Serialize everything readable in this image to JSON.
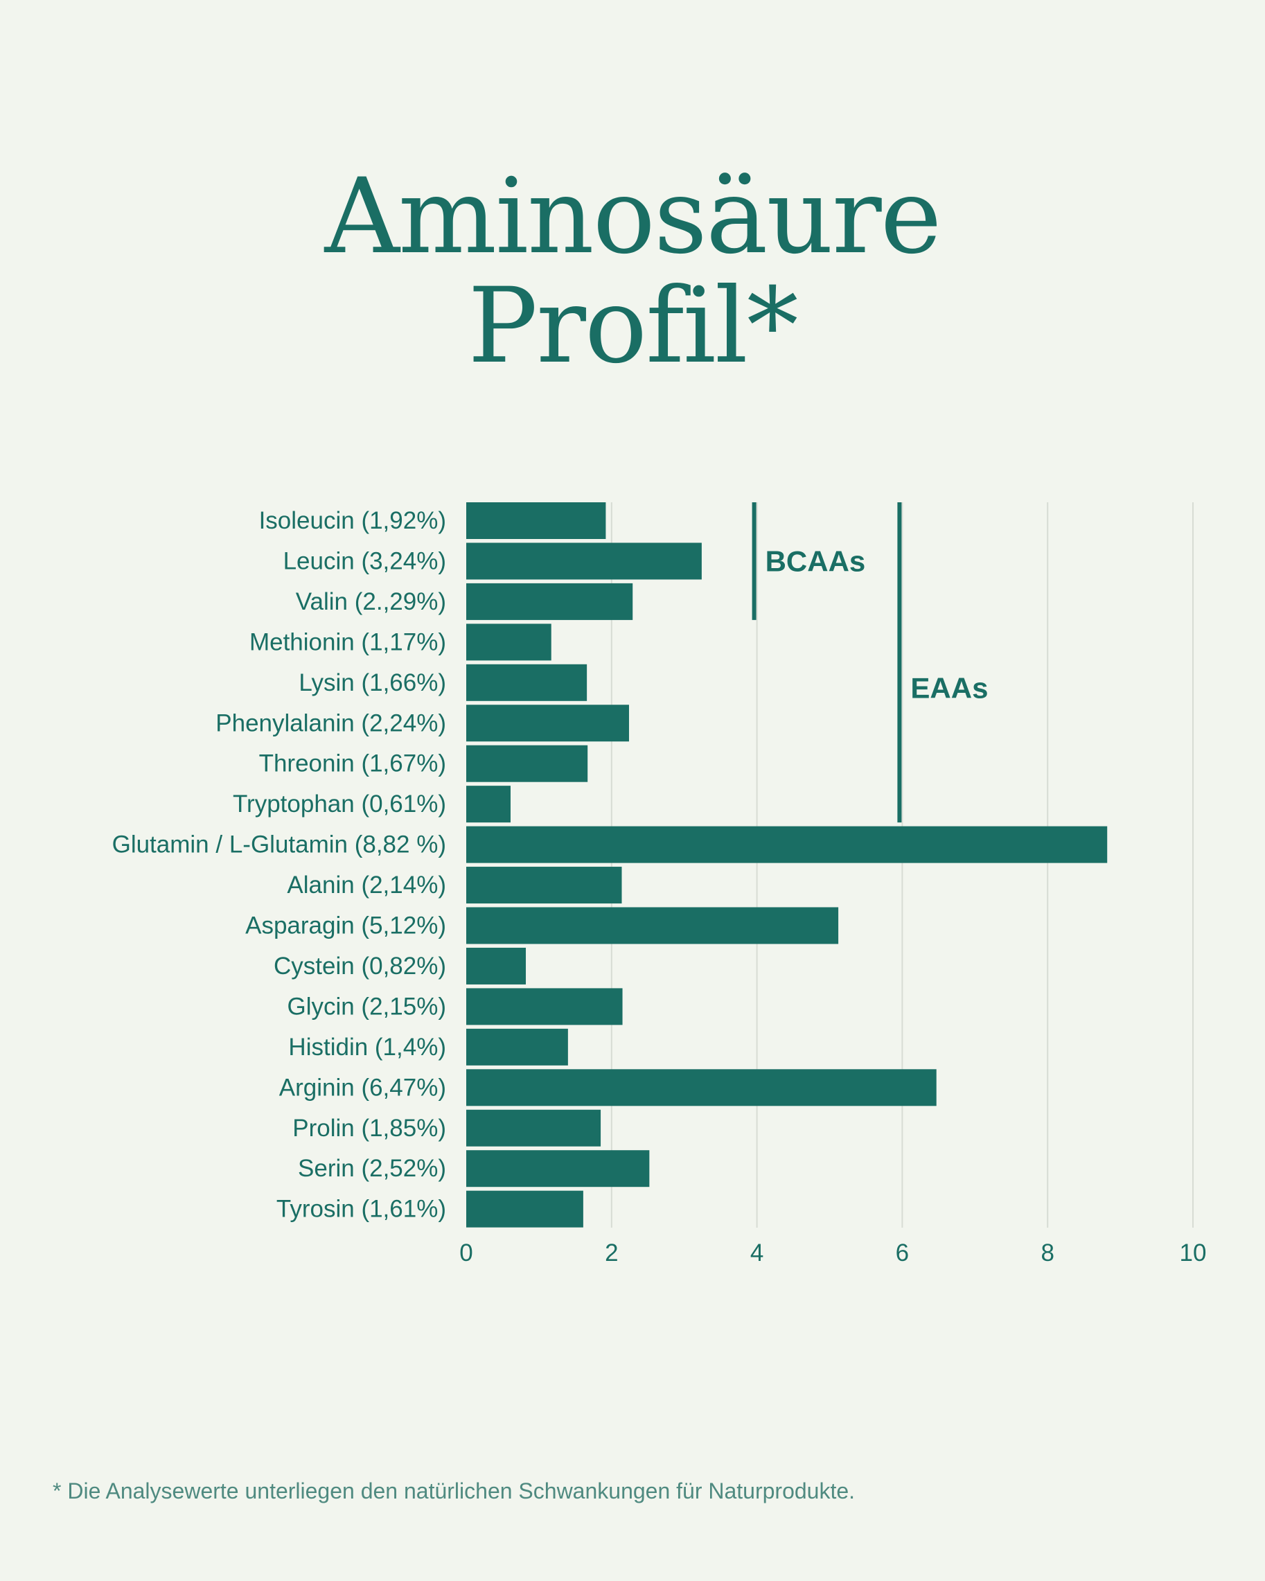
{
  "title": {
    "line1": "Aminosäure",
    "line2": "Profil*"
  },
  "colors": {
    "background": "#f2f5ee",
    "accent": "#1a6e64",
    "grid": "#d7dcd4",
    "footnote": "#4f8a80"
  },
  "chart_data": {
    "type": "bar",
    "orientation": "horizontal",
    "categories": [
      "Isoleucin (1,92%)",
      "Leucin (3,24%)",
      "Valin (2.,29%)",
      "Methionin (1,17%)",
      "Lysin (1,66%)",
      "Phenylalanin (2,24%)",
      "Threonin (1,67%)",
      "Tryptophan (0,61%)",
      "Glutamin / L-Glutamin (8,82 %)",
      "Alanin (2,14%)",
      "Asparagin (5,12%)",
      "Cystein (0,82%)",
      "Glycin (2,15%)",
      "Histidin (1,4%)",
      "Arginin (6,47%)",
      "Prolin (1,85%)",
      "Serin (2,52%)",
      "Tyrosin (1,61%)"
    ],
    "values": [
      1.92,
      3.24,
      2.29,
      1.17,
      1.66,
      2.24,
      1.67,
      0.61,
      8.82,
      2.14,
      5.12,
      0.82,
      2.15,
      1.4,
      6.47,
      1.85,
      2.52,
      1.61
    ],
    "xlim": [
      0,
      10
    ],
    "xticks": [
      0,
      2,
      4,
      6,
      8,
      10
    ],
    "grid": true,
    "annotations": [
      {
        "label": "BCAAs",
        "x": 4,
        "from_category": 0,
        "to_category": 2
      },
      {
        "label": "EAAs",
        "x": 6,
        "from_category": 0,
        "to_category": 7
      }
    ]
  },
  "footnote": "* Die Analysewerte unterliegen den natürlichen Schwankungen für Naturprodukte."
}
